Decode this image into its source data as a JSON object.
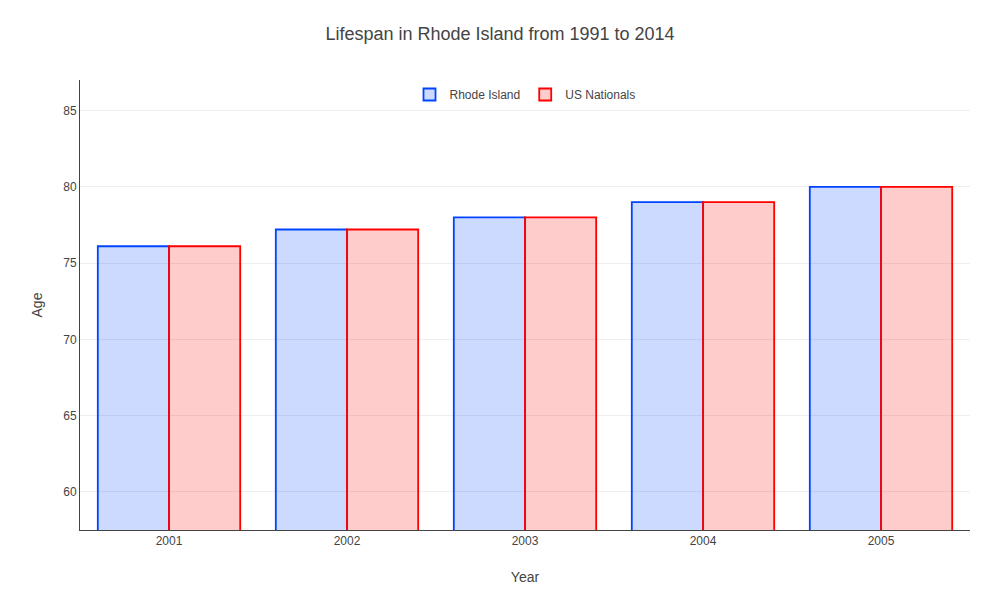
{
  "chart_data": {
    "type": "bar",
    "title": "Lifespan in Rhode Island from 1991 to 2014",
    "xlabel": "Year",
    "ylabel": "Age",
    "categories": [
      "2001",
      "2002",
      "2003",
      "2004",
      "2005"
    ],
    "series": [
      {
        "name": "Rhode Island",
        "color": "#0044ff",
        "values": [
          76.1,
          77.2,
          78.0,
          79.0,
          80.0
        ]
      },
      {
        "name": "US Nationals",
        "color": "#ff0000",
        "values": [
          76.1,
          77.2,
          78.0,
          79.0,
          80.0
        ]
      }
    ],
    "ylim": [
      57.5,
      87
    ],
    "yticks": [
      60,
      65,
      70,
      75,
      80,
      85
    ],
    "grid": true,
    "legend": "upper center"
  }
}
